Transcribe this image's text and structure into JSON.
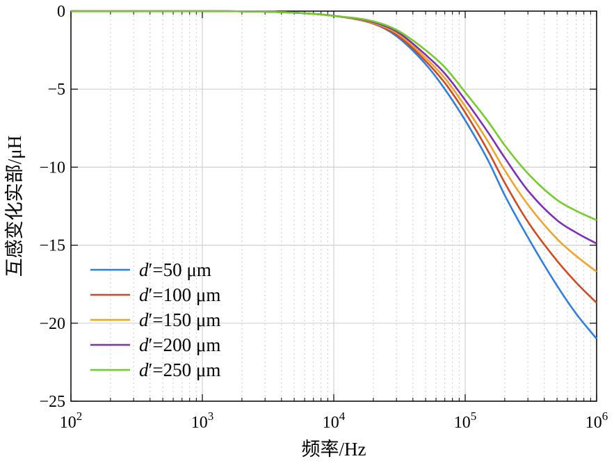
{
  "chart_data": {
    "type": "line",
    "title": "",
    "xlabel": "频率/Hz",
    "ylabel": "互感变化实部/μH",
    "xscale": "log",
    "xlim": [
      100,
      1000000
    ],
    "ylim": [
      -25,
      0
    ],
    "x_ticks": [
      {
        "base": "10",
        "exp": "2"
      },
      {
        "base": "10",
        "exp": "3"
      },
      {
        "base": "10",
        "exp": "4"
      },
      {
        "base": "10",
        "exp": "5"
      },
      {
        "base": "10",
        "exp": "6"
      }
    ],
    "y_ticks": [
      "0",
      "−5",
      "−10",
      "−15",
      "−20",
      "−25"
    ],
    "grid": true,
    "legend_position": "bottom-left",
    "x": [
      100,
      1000,
      5000,
      10000,
      20000,
      30000,
      50000,
      70000,
      100000,
      150000,
      200000,
      300000,
      500000,
      700000,
      1000000
    ],
    "series": [
      {
        "name": "d′=50 μm",
        "legend": {
          "var": "d",
          "prime": "′",
          "rest": "=50 μm"
        },
        "color": "#2f7fe0",
        "values": [
          0,
          0,
          -0.1,
          -0.3,
          -0.8,
          -1.6,
          -3.4,
          -5.0,
          -7.0,
          -9.6,
          -11.8,
          -14.5,
          -17.6,
          -19.4,
          -21.0
        ]
      },
      {
        "name": "d′=100 μm",
        "legend": {
          "var": "d",
          "prime": "′",
          "rest": "=100 μm"
        },
        "color": "#d14a1f",
        "values": [
          0,
          0,
          -0.1,
          -0.3,
          -0.8,
          -1.5,
          -3.2,
          -4.6,
          -6.5,
          -9.0,
          -11.0,
          -13.5,
          -16.0,
          -17.4,
          -18.7
        ]
      },
      {
        "name": "d′=150 μm",
        "legend": {
          "var": "d",
          "prime": "′",
          "rest": "=150 μm"
        },
        "color": "#eea32a",
        "values": [
          0,
          0,
          -0.1,
          -0.3,
          -0.75,
          -1.4,
          -3.0,
          -4.3,
          -6.1,
          -8.4,
          -10.2,
          -12.4,
          -14.6,
          -15.7,
          -16.7
        ]
      },
      {
        "name": "d′=200 μm",
        "legend": {
          "var": "d",
          "prime": "′",
          "rest": "=200 μm"
        },
        "color": "#7e2fb8",
        "values": [
          0,
          0,
          -0.1,
          -0.3,
          -0.7,
          -1.3,
          -2.8,
          -4.0,
          -5.7,
          -7.8,
          -9.4,
          -11.5,
          -13.4,
          -14.2,
          -14.9
        ]
      },
      {
        "name": "d′=250 μm",
        "legend": {
          "var": "d",
          "prime": "′",
          "rest": "=250 μm"
        },
        "color": "#73cc2a",
        "values": [
          0,
          0,
          -0.1,
          -0.3,
          -0.65,
          -1.2,
          -2.5,
          -3.6,
          -5.2,
          -7.1,
          -8.6,
          -10.4,
          -12.1,
          -12.8,
          -13.4
        ]
      }
    ]
  }
}
